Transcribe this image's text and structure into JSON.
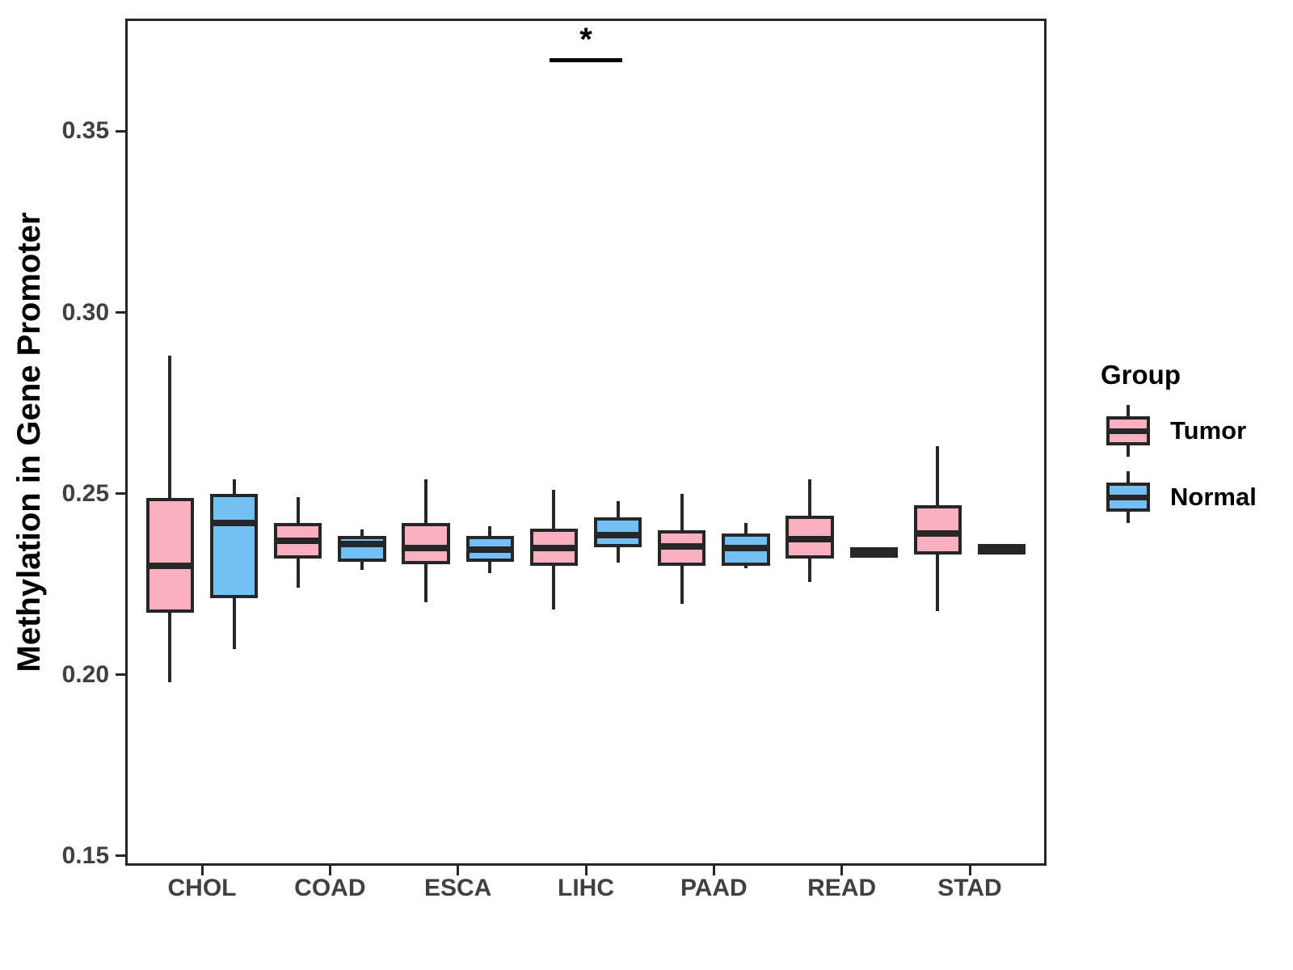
{
  "chart_data": {
    "type": "boxplot",
    "title": "",
    "xlabel": "",
    "ylabel": "Methylation in Gene Promoter",
    "categories": [
      "CHOL",
      "COAD",
      "ESCA",
      "LIHC",
      "PAAD",
      "READ",
      "STAD"
    ],
    "y_ticks": [
      0.15,
      0.2,
      0.25,
      0.3,
      0.35
    ],
    "y_tick_labels": [
      "0.15",
      "0.20",
      "0.25",
      "0.30",
      "0.35"
    ],
    "ylim": [
      0.1473,
      0.3811
    ],
    "grid": false,
    "stroke_color": "#262626",
    "legend": {
      "title": "Group",
      "position": "right"
    },
    "box_stats_format": [
      "min",
      "q1",
      "median",
      "q3",
      "max"
    ],
    "series": [
      {
        "name": "Tumor",
        "color": "#FBB0C2",
        "boxes": [
          [
            0.198,
            0.218,
            0.23,
            0.248,
            0.288
          ],
          [
            0.224,
            0.233,
            0.237,
            0.241,
            0.249
          ],
          [
            0.22,
            0.2315,
            0.235,
            0.241,
            0.254
          ],
          [
            0.218,
            0.231,
            0.235,
            0.2395,
            0.251
          ],
          [
            0.2195,
            0.231,
            0.2355,
            0.239,
            0.25
          ],
          [
            0.2255,
            0.233,
            0.2375,
            0.243,
            0.254
          ],
          [
            0.2175,
            0.234,
            0.239,
            0.246,
            0.263
          ]
        ]
      },
      {
        "name": "Normal",
        "color": "#73BFF3",
        "boxes": [
          [
            0.207,
            0.222,
            0.242,
            0.249,
            0.254
          ],
          [
            0.229,
            0.232,
            0.236,
            0.2375,
            0.24
          ],
          [
            0.228,
            0.232,
            0.2345,
            0.2375,
            0.241
          ],
          [
            0.231,
            0.236,
            0.2385,
            0.2425,
            0.248
          ],
          [
            0.2295,
            0.231,
            0.235,
            0.238,
            0.242
          ],
          [
            0.2325,
            0.2332,
            0.2338,
            0.2344,
            0.235
          ],
          [
            0.2335,
            0.2341,
            0.2347,
            0.2353,
            0.236
          ]
        ]
      }
    ],
    "annotation": {
      "label": "*",
      "category": "LIHC",
      "compares": [
        "Tumor",
        "Normal"
      ],
      "y": 0.3695
    }
  }
}
